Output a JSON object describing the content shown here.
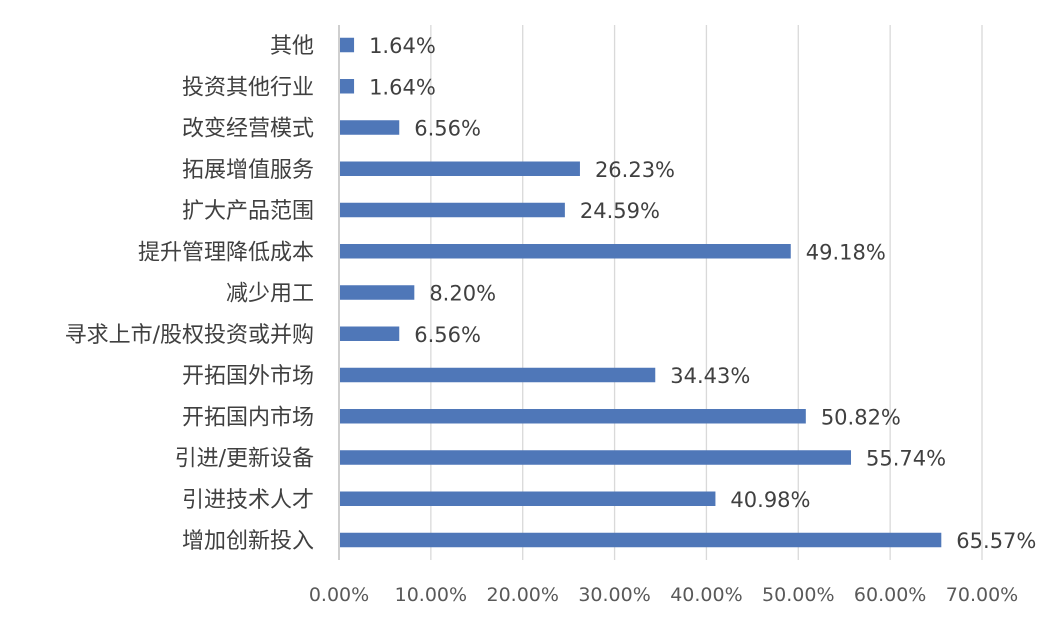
{
  "chart_data": {
    "type": "bar",
    "orientation": "horizontal",
    "categories": [
      "其他",
      "投资其他行业",
      "改变经营模式",
      "拓展增值服务",
      "扩大产品范围",
      "提升管理降低成本",
      "减少用工",
      "寻求上市/股权投资或并购",
      "开拓国外市场",
      "开拓国内市场",
      "引进/更新设备",
      "引进技术人才",
      "增加创新投入"
    ],
    "values": [
      1.64,
      1.64,
      6.56,
      26.23,
      24.59,
      49.18,
      8.2,
      6.56,
      34.43,
      50.82,
      55.74,
      40.98,
      65.57
    ],
    "value_labels": [
      "1.64%",
      "1.64%",
      "6.56%",
      "26.23%",
      "24.59%",
      "49.18%",
      "8.20%",
      "6.56%",
      "34.43%",
      "50.82%",
      "55.74%",
      "40.98%",
      "65.57%"
    ],
    "xlim": [
      0,
      70
    ],
    "xticks": [
      "0.00%",
      "10.00%",
      "20.00%",
      "30.00%",
      "40.00%",
      "50.00%",
      "60.00%",
      "70.00%"
    ],
    "title": "",
    "xlabel": "",
    "ylabel": "",
    "grid": true,
    "bar_color": "#4f77b8"
  }
}
